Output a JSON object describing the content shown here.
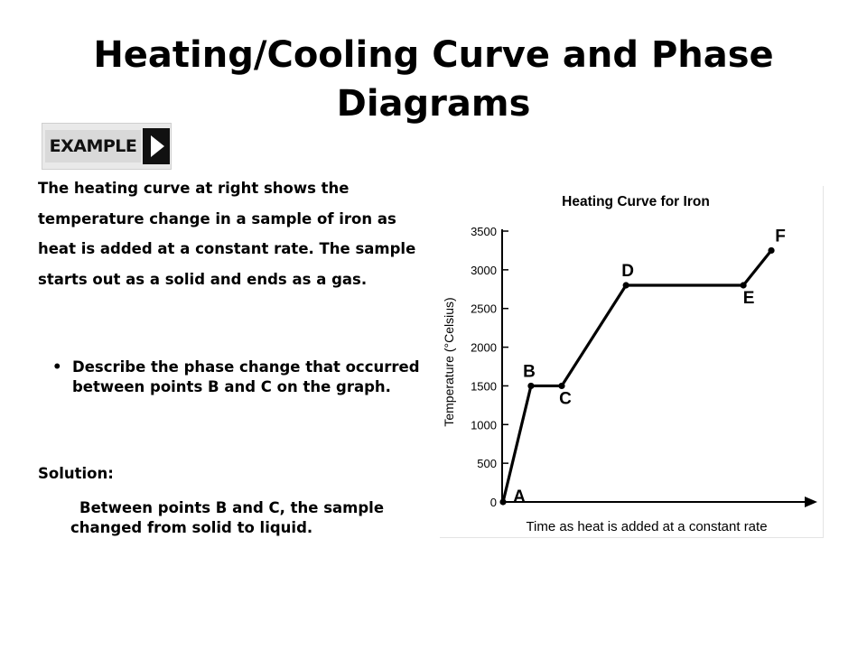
{
  "slide": {
    "title": "Heating/Cooling Curve and Phase Diagrams",
    "example_label": "EXAMPLE",
    "intro": "The heating curve at right shows the temperature change in a sample of iron as heat is added at a constant rate. The sample starts out as a solid and ends as a gas.",
    "bullet": "Describe the phase change that occurred between points B and C on the graph.",
    "solution_label": "Solution:",
    "solution_text": "Between points B and C, the sample changed from solid to liquid."
  },
  "icons": {
    "example_arrow": "play-triangle-icon"
  },
  "chart_data": {
    "type": "line",
    "title": "Heating Curve for Iron",
    "xlabel": "Time as heat is added at a constant rate",
    "ylabel": "Temperature (°Celsius)",
    "ylim": [
      0,
      3500
    ],
    "yticks": [
      "0",
      "500",
      "1000",
      "1500",
      "2000",
      "2500",
      "3000",
      "3500"
    ],
    "x_axis_ticks": false,
    "grid": false,
    "points": [
      {
        "label": "A",
        "x": 0,
        "y": 0
      },
      {
        "label": "B",
        "x": 1,
        "y": 1500
      },
      {
        "label": "C",
        "x": 2.1,
        "y": 1500
      },
      {
        "label": "D",
        "x": 4.4,
        "y": 2800
      },
      {
        "label": "E",
        "x": 8.6,
        "y": 2800
      },
      {
        "label": "F",
        "x": 9.6,
        "y": 3250
      }
    ],
    "xlim": [
      0,
      10.6
    ],
    "line_color": "#000000"
  }
}
